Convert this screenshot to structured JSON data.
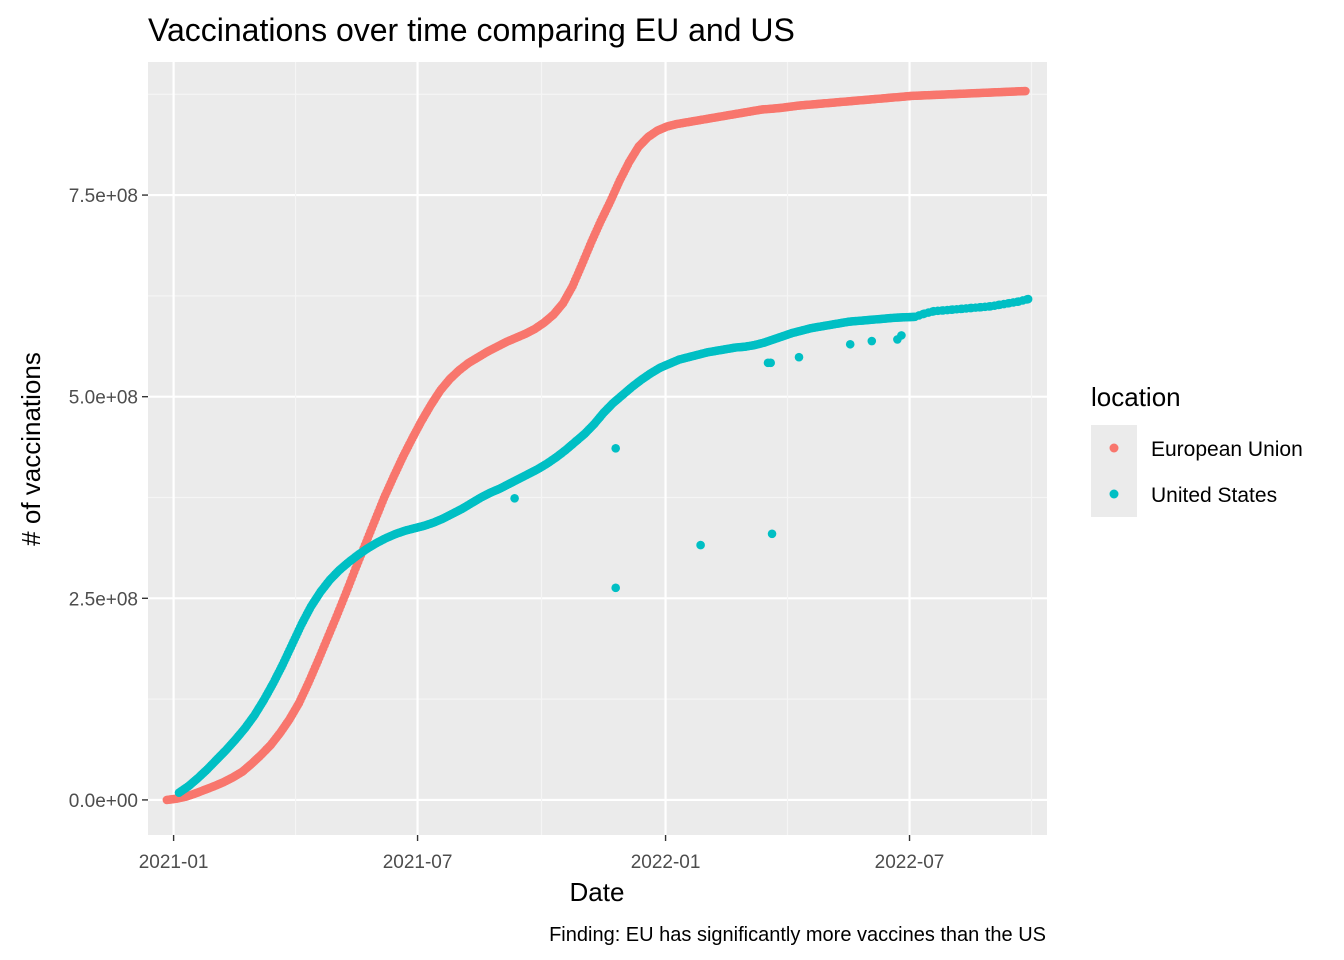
{
  "chart_data": {
    "type": "scatter",
    "title": "Vaccinations over time comparing EU and US",
    "xlabel": "Date",
    "ylabel": "# of vaccinations",
    "caption": "Finding: EU has significantly more vaccines than the US",
    "x_ticks": [
      "2021-01",
      "2021-07",
      "2022-01",
      "2022-07"
    ],
    "y_ticks": [
      "0.0e+00",
      "2.5e+08",
      "5.0e+08",
      "7.5e+08"
    ],
    "y_tick_values": [
      0,
      250000000,
      500000000,
      750000000
    ],
    "xlim": [
      "2020-12-13",
      "2022-10-11"
    ],
    "ylim": [
      -43500000,
      915000000
    ],
    "grid": true,
    "legend": {
      "title": "location",
      "position": "right"
    },
    "series": [
      {
        "name": "European Union",
        "color": "#F8766D",
        "x": [
          "2020-12-27",
          "2021-01-03",
          "2021-01-10",
          "2021-01-17",
          "2021-01-24",
          "2021-01-31",
          "2021-02-07",
          "2021-02-14",
          "2021-02-21",
          "2021-02-28",
          "2021-03-07",
          "2021-03-14",
          "2021-03-21",
          "2021-03-28",
          "2021-04-04",
          "2021-04-11",
          "2021-04-18",
          "2021-04-25",
          "2021-05-02",
          "2021-05-09",
          "2021-05-16",
          "2021-05-23",
          "2021-05-30",
          "2021-06-06",
          "2021-06-13",
          "2021-06-20",
          "2021-06-27",
          "2021-07-04",
          "2021-07-11",
          "2021-07-18",
          "2021-07-25",
          "2021-08-01",
          "2021-08-08",
          "2021-08-15",
          "2021-08-22",
          "2021-08-29",
          "2021-09-05",
          "2021-09-12",
          "2021-09-19",
          "2021-09-26",
          "2021-10-03",
          "2021-10-10",
          "2021-10-17",
          "2021-10-24",
          "2021-10-31",
          "2021-11-07",
          "2021-11-14",
          "2021-11-21",
          "2021-11-28",
          "2021-12-05",
          "2021-12-12",
          "2021-12-19",
          "2021-12-26",
          "2022-01-02",
          "2022-01-09",
          "2022-01-16",
          "2022-01-23",
          "2022-01-30",
          "2022-02-06",
          "2022-02-13",
          "2022-02-20",
          "2022-02-27",
          "2022-03-13",
          "2022-03-27",
          "2022-04-10",
          "2022-04-24",
          "2022-05-08",
          "2022-05-22",
          "2022-06-05",
          "2022-06-19",
          "2022-07-03",
          "2022-07-17",
          "2022-07-31",
          "2022-08-14",
          "2022-08-28",
          "2022-09-11",
          "2022-09-25"
        ],
        "values": [
          0,
          1500000,
          4000000,
          8000000,
          12500000,
          17000000,
          22000000,
          28000000,
          35000000,
          45000000,
          56000000,
          68000000,
          83000000,
          100000000,
          120000000,
          145000000,
          172000000,
          200000000,
          228000000,
          257000000,
          287000000,
          316000000,
          345000000,
          374000000,
          400000000,
          425000000,
          448000000,
          470000000,
          490000000,
          508000000,
          522000000,
          533000000,
          542000000,
          549000000,
          556000000,
          562000000,
          568000000,
          573000000,
          578000000,
          584000000,
          592000000,
          602000000,
          616000000,
          637000000,
          664000000,
          692000000,
          718000000,
          742000000,
          768000000,
          791000000,
          810000000,
          822000000,
          830000000,
          835000000,
          838000000,
          840000000,
          842000000,
          844000000,
          846000000,
          848000000,
          850000000,
          852000000,
          856000000,
          858000000,
          861000000,
          863000000,
          865000000,
          867000000,
          869000000,
          871000000,
          873000000,
          874000000,
          875000000,
          876000000,
          877000000,
          878000000,
          879000000
        ]
      },
      {
        "name": "United States",
        "color": "#00BFC4",
        "x": [
          "2021-01-05",
          "2021-01-12",
          "2021-01-19",
          "2021-01-26",
          "2021-02-02",
          "2021-02-09",
          "2021-02-16",
          "2021-02-23",
          "2021-03-02",
          "2021-03-09",
          "2021-03-16",
          "2021-03-23",
          "2021-03-30",
          "2021-04-06",
          "2021-04-13",
          "2021-04-20",
          "2021-04-27",
          "2021-05-04",
          "2021-05-11",
          "2021-05-18",
          "2021-05-25",
          "2021-06-01",
          "2021-06-08",
          "2021-06-15",
          "2021-06-22",
          "2021-06-29",
          "2021-07-06",
          "2021-07-13",
          "2021-07-20",
          "2021-07-27",
          "2021-08-03",
          "2021-08-10",
          "2021-08-17",
          "2021-08-24",
          "2021-08-31",
          "2021-09-07",
          "2021-09-14",
          "2021-09-21",
          "2021-09-28",
          "2021-10-05",
          "2021-10-12",
          "2021-10-19",
          "2021-10-26",
          "2021-11-02",
          "2021-11-09",
          "2021-11-16",
          "2021-11-23",
          "2021-11-30",
          "2021-12-07",
          "2021-12-14",
          "2021-12-21",
          "2021-12-28",
          "2022-01-04",
          "2022-01-11",
          "2022-01-18",
          "2022-01-25",
          "2022-02-01",
          "2022-02-08",
          "2022-02-15",
          "2022-02-22",
          "2022-03-01",
          "2022-03-08",
          "2022-03-15",
          "2022-03-22",
          "2022-03-29",
          "2022-04-05",
          "2022-04-12",
          "2022-04-19",
          "2022-04-26",
          "2022-05-03",
          "2022-05-10",
          "2022-05-17",
          "2022-05-24",
          "2022-05-31",
          "2022-06-07",
          "2022-06-14",
          "2022-06-21",
          "2022-07-05",
          "2022-07-12",
          "2022-07-19",
          "2022-07-26",
          "2022-08-02",
          "2022-08-09",
          "2022-08-16",
          "2022-08-23",
          "2022-08-30",
          "2022-09-06",
          "2022-09-13",
          "2022-09-20",
          "2022-09-27",
          "2021-09-11",
          "2021-11-25",
          "2021-11-25",
          "2022-01-27",
          "2022-03-18",
          "2022-03-20",
          "2022-03-21",
          "2022-04-10",
          "2022-05-18",
          "2022-06-03",
          "2022-06-22",
          "2022-06-25"
        ],
        "values": [
          9000000,
          17000000,
          27000000,
          38000000,
          50000000,
          62000000,
          75000000,
          89000000,
          105000000,
          124000000,
          145000000,
          168000000,
          193000000,
          218000000,
          240000000,
          258000000,
          273000000,
          285000000,
          295000000,
          304000000,
          312000000,
          319000000,
          325000000,
          330000000,
          334000000,
          337000000,
          340000000,
          344000000,
          349000000,
          355000000,
          361000000,
          368000000,
          375000000,
          381000000,
          386000000,
          392000000,
          398000000,
          404000000,
          410000000,
          417000000,
          425000000,
          434000000,
          444000000,
          454000000,
          466000000,
          480000000,
          492000000,
          502000000,
          512000000,
          521000000,
          529000000,
          536000000,
          541000000,
          546000000,
          549000000,
          552000000,
          555000000,
          557000000,
          559000000,
          561000000,
          562000000,
          564000000,
          567000000,
          571000000,
          575000000,
          579000000,
          582000000,
          585000000,
          587000000,
          589000000,
          591000000,
          593000000,
          594000000,
          595000000,
          596000000,
          597000000,
          598000000,
          599000000,
          603000000,
          606000000,
          607000000,
          608000000,
          609000000,
          610000000,
          611000000,
          612000000,
          614000000,
          616000000,
          618000000,
          621000000,
          374000000,
          436000000,
          263000000,
          316000000,
          542000000,
          542000000,
          330000000,
          549000000,
          565000000,
          569000000,
          571000000,
          576000000
        ]
      }
    ]
  }
}
